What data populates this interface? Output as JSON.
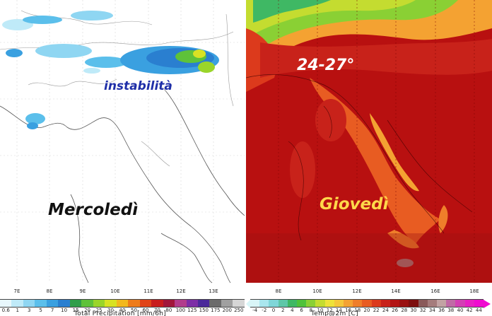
{
  "left_map": {
    "label_main": "instabilità",
    "label_day": "Mercoledì",
    "colorbar_title": "Total Precipitation [mm/6h]",
    "colorbar_ticks": [
      "0.6",
      "1",
      "3",
      "5",
      "7",
      "10",
      "15",
      "20",
      "25",
      "30",
      "40",
      "50",
      "60",
      "70",
      "80",
      "100",
      "125",
      "150",
      "175",
      "200",
      "250"
    ],
    "colorbar_colors": [
      "#e8f7fc",
      "#bfeaf8",
      "#8fd6f2",
      "#5bbfeb",
      "#3aa0e0",
      "#2a7fd0",
      "#2f9e4a",
      "#5ec23a",
      "#9ad52a",
      "#d8e224",
      "#f2b81e",
      "#ee7c1a",
      "#e04418",
      "#c81c1c",
      "#a1163a",
      "#b23c8c",
      "#7d2ea6",
      "#4b2a9a",
      "#6b6b6b",
      "#a0a0a0",
      "#d6d6d6"
    ],
    "lon_labels": [
      "7E",
      "8E",
      "9E",
      "10E",
      "11E",
      "12E",
      "13E"
    ]
  },
  "right_map": {
    "label_range": "24-27°",
    "label_day": "Giovedì",
    "colorbar_title": "Temp@2m [C]",
    "colorbar_ticks": [
      "-4",
      "-2",
      "0",
      "2",
      "4",
      "6",
      "8",
      "10",
      "12",
      "14",
      "16",
      "18",
      "20",
      "22",
      "24",
      "26",
      "28",
      "30",
      "32",
      "34",
      "36",
      "38",
      "40",
      "42",
      "44"
    ],
    "colorbar_colors": [
      "#d9f5f7",
      "#a9e6ee",
      "#7fd6d8",
      "#5ec7a8",
      "#3fb864",
      "#4fc23a",
      "#8ad034",
      "#c4dc30",
      "#eee23a",
      "#f5c73a",
      "#f4a232",
      "#ef7e2a",
      "#e85c22",
      "#dc3a1c",
      "#c8221a",
      "#b31414",
      "#9a1010",
      "#7d0e0e",
      "#8a5a5a",
      "#a57c7c",
      "#c2a3a3",
      "#c06aa6",
      "#d33fb4",
      "#e81fc4",
      "#f00ad0"
    ],
    "lon_labels": [
      "8E",
      "10E",
      "12E",
      "14E",
      "16E",
      "18E"
    ]
  }
}
